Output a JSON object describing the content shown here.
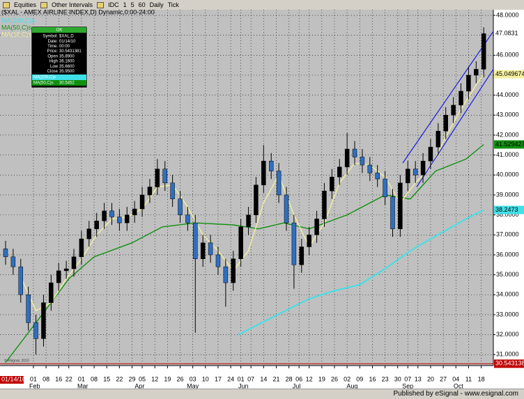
{
  "toolbar": {
    "items": [
      "Equities",
      "Other Intervals",
      "IDC",
      "1",
      "5",
      "60",
      "Daily",
      "Tick"
    ]
  },
  "chart_data": {
    "type": "candlestick",
    "title": "($XAL - AMEX AIRLINE INDEX,D) Dynamic,0:00-24:00",
    "copyright": "© eSignal, 2010",
    "start_label": "01/14/10",
    "up_color": "#000000",
    "down_color": "#2f6fbf",
    "x": [
      0,
      3,
      6,
      9,
      12,
      15,
      18,
      21,
      24,
      27,
      30,
      33,
      36,
      39,
      42,
      45,
      48,
      51,
      54,
      57,
      60,
      63,
      66,
      69,
      72,
      75,
      78,
      81,
      84,
      87,
      90,
      93,
      96,
      99,
      102,
      105,
      108,
      111,
      114,
      117,
      120,
      123,
      126,
      129,
      132,
      135,
      138,
      141,
      144,
      147,
      150,
      153,
      156,
      159,
      162,
      165,
      168,
      171,
      174,
      177,
      180,
      183,
      186,
      189
    ],
    "open": [
      36.3,
      35.9,
      35.4,
      34.0,
      32.6,
      31.8,
      33.6,
      34.6,
      35.2,
      35.3,
      35.9,
      36.8,
      37.3,
      37.7,
      38.2,
      37.9,
      37.6,
      38.0,
      38.3,
      39.0,
      39.4,
      40.3,
      39.6,
      38.8,
      38.0,
      37.6,
      35.8,
      36.6,
      36.0,
      35.4,
      34.6,
      35.8,
      37.4,
      38.0,
      39.5,
      40.7,
      40.2,
      39.0,
      37.6,
      35.5,
      36.4,
      37.0,
      37.8,
      39.2,
      39.9,
      40.4,
      41.3,
      40.9,
      40.5,
      40.1,
      39.8,
      38.9,
      37.3,
      39.6,
      40.3,
      40.0,
      40.7,
      41.4,
      42.2,
      43.0,
      43.5,
      44.2,
      45.0,
      45.3
    ],
    "high": [
      36.7,
      36.3,
      35.8,
      34.4,
      33.0,
      34.0,
      35.0,
      35.6,
      35.7,
      36.3,
      37.2,
      37.7,
      38.1,
      38.6,
      38.6,
      38.3,
      38.4,
      38.7,
      39.4,
      39.8,
      40.8,
      40.7,
      40.0,
      39.2,
      38.4,
      38.0,
      37.0,
      37.0,
      36.4,
      35.8,
      36.2,
      37.8,
      38.4,
      39.9,
      41.5,
      41.1,
      40.6,
      39.4,
      38.0,
      36.8,
      37.4,
      38.2,
      39.6,
      40.3,
      40.8,
      42.1,
      41.7,
      41.3,
      40.9,
      40.5,
      40.2,
      39.3,
      40.0,
      40.7,
      40.7,
      41.1,
      41.8,
      42.6,
      43.4,
      43.9,
      44.6,
      45.4,
      45.7,
      47.4
    ],
    "low": [
      35.5,
      35.0,
      33.6,
      32.2,
      31.0,
      31.4,
      33.2,
      34.2,
      34.8,
      34.9,
      35.5,
      36.4,
      36.9,
      37.3,
      37.5,
      37.2,
      37.2,
      37.6,
      37.9,
      38.6,
      39.0,
      39.2,
      38.4,
      37.6,
      37.2,
      32.1,
      35.4,
      35.6,
      35.0,
      33.4,
      34.2,
      35.4,
      37.0,
      37.6,
      39.1,
      39.8,
      38.6,
      37.2,
      34.3,
      35.1,
      36.0,
      36.6,
      37.4,
      38.8,
      39.5,
      40.0,
      40.5,
      40.1,
      39.7,
      39.4,
      38.5,
      36.9,
      36.9,
      39.2,
      39.6,
      39.6,
      40.3,
      41.0,
      41.8,
      42.6,
      43.1,
      43.8,
      44.6,
      44.9
    ],
    "close": [
      35.9,
      35.4,
      34.0,
      32.6,
      31.8,
      33.6,
      34.6,
      35.2,
      35.3,
      35.9,
      36.8,
      37.3,
      37.7,
      38.2,
      37.9,
      37.6,
      38.0,
      38.3,
      39.0,
      39.4,
      40.3,
      39.6,
      38.8,
      38.0,
      37.6,
      35.8,
      36.6,
      36.0,
      35.4,
      34.6,
      35.8,
      37.4,
      38.0,
      39.5,
      40.7,
      40.2,
      39.0,
      37.6,
      35.5,
      36.4,
      37.0,
      37.8,
      39.2,
      39.9,
      40.4,
      41.3,
      40.9,
      40.5,
      40.1,
      39.8,
      38.9,
      37.3,
      39.6,
      40.3,
      40.0,
      40.7,
      41.4,
      42.2,
      43.0,
      43.5,
      44.2,
      45.0,
      45.3,
      47.0831
    ],
    "lines": [
      {
        "name": "MA(200,C)s",
        "color": "#40e0e8",
        "x": [
          92,
          106,
          120,
          130,
          140,
          150,
          160,
          168,
          175,
          182,
          189
        ],
        "values": [
          32.0,
          32.9,
          33.8,
          34.2,
          34.5,
          35.3,
          36.2,
          36.8,
          37.3,
          37.8,
          38.2473
        ]
      },
      {
        "name": "MA(50,C)s",
        "color": "#109010",
        "x": [
          0,
          6,
          12,
          18,
          25,
          35,
          50,
          62,
          75,
          90,
          100,
          110,
          120,
          135,
          150,
          160,
          170,
          182,
          189
        ],
        "values": [
          30.6,
          31.6,
          32.6,
          33.6,
          34.8,
          35.9,
          36.6,
          37.4,
          37.6,
          37.5,
          37.3,
          37.6,
          37.3,
          38.0,
          39.0,
          38.8,
          40.2,
          40.8,
          41.529427
        ]
      },
      {
        "name": "MA(10,C)s",
        "color": "#f5efa0",
        "x": [
          6,
          12,
          18,
          24,
          30,
          36,
          42,
          48,
          54,
          60,
          66,
          72,
          78,
          84,
          90,
          96,
          102,
          108,
          114,
          120,
          126,
          132,
          138,
          144,
          150,
          156,
          162,
          168,
          174,
          180,
          186,
          189
        ],
        "values": [
          34.9,
          33.2,
          33.6,
          34.8,
          35.8,
          37.0,
          37.8,
          37.9,
          38.3,
          39.4,
          39.5,
          38.4,
          37.0,
          36.2,
          35.2,
          36.2,
          38.6,
          40.0,
          38.0,
          36.4,
          37.6,
          39.6,
          40.6,
          40.5,
          39.9,
          38.6,
          39.6,
          40.4,
          41.9,
          43.3,
          44.5,
          45.049674
        ]
      }
    ],
    "channel": {
      "color": "#1a1ae0",
      "lines": [
        {
          "x": [
            157,
            192.8
          ],
          "values": [
            40.6,
            47.2
          ]
        },
        {
          "x": [
            162.5,
            192.8
          ],
          "values": [
            39.4,
            45.3
          ]
        }
      ]
    },
    "ref_line": {
      "value": 30.543138,
      "color": "#c00000"
    },
    "xlim": [
      -2.2,
      192.8
    ],
    "ylim": [
      30.45,
      48.28
    ],
    "yticks": [
      {
        "value": 31,
        "label": "31.0000"
      },
      {
        "value": 32,
        "label": "32.0000"
      },
      {
        "value": 33,
        "label": "33.0000"
      },
      {
        "value": 34,
        "label": "34.0000"
      },
      {
        "value": 35,
        "label": "35.0000"
      },
      {
        "value": 36,
        "label": "36.0000"
      },
      {
        "value": 37,
        "label": "37.0000"
      },
      {
        "value": 38,
        "label": "38.0000"
      },
      {
        "value": 39,
        "label": "39.0000"
      },
      {
        "value": 40,
        "label": "40.0000"
      },
      {
        "value": 41,
        "label": "41.0000"
      },
      {
        "value": 42,
        "label": "42.0000"
      },
      {
        "value": 43,
        "label": "43.0000"
      },
      {
        "value": 44,
        "label": "44.0000"
      },
      {
        "value": 45,
        "label": "45.0000"
      },
      {
        "value": 46,
        "label": "46.0000"
      },
      {
        "value": 47,
        "label": "47.0000"
      },
      {
        "value": 48,
        "label": "48.0000"
      }
    ],
    "xticks": [
      {
        "value": 11,
        "label": "01"
      },
      {
        "value": 16,
        "label": "08"
      },
      {
        "value": 21,
        "label": "16"
      },
      {
        "value": 25,
        "label": "22"
      },
      {
        "value": 30,
        "label": "01"
      },
      {
        "value": 35,
        "label": "08"
      },
      {
        "value": 40,
        "label": "15"
      },
      {
        "value": 45,
        "label": "22"
      },
      {
        "value": 50,
        "label": "29"
      },
      {
        "value": 54,
        "label": "05"
      },
      {
        "value": 59,
        "label": "12"
      },
      {
        "value": 64,
        "label": "19"
      },
      {
        "value": 69,
        "label": "26"
      },
      {
        "value": 74,
        "label": "03"
      },
      {
        "value": 79,
        "label": "10"
      },
      {
        "value": 84,
        "label": "17"
      },
      {
        "value": 89,
        "label": "24"
      },
      {
        "value": 93,
        "label": "01"
      },
      {
        "value": 97,
        "label": "07"
      },
      {
        "value": 102,
        "label": "14"
      },
      {
        "value": 107,
        "label": "21"
      },
      {
        "value": 112,
        "label": "28"
      },
      {
        "value": 116,
        "label": "06"
      },
      {
        "value": 120,
        "label": "12"
      },
      {
        "value": 125,
        "label": "19"
      },
      {
        "value": 130,
        "label": "26"
      },
      {
        "value": 135,
        "label": "02"
      },
      {
        "value": 140,
        "label": "09"
      },
      {
        "value": 145,
        "label": "16"
      },
      {
        "value": 150,
        "label": "23"
      },
      {
        "value": 155,
        "label": "30"
      },
      {
        "value": 159,
        "label": "07"
      },
      {
        "value": 163,
        "label": "13"
      },
      {
        "value": 168,
        "label": "20"
      },
      {
        "value": 173,
        "label": "27"
      },
      {
        "value": 178,
        "label": "04"
      },
      {
        "value": 183,
        "label": "11"
      },
      {
        "value": 188,
        "label": "18"
      }
    ],
    "month_ticks": [
      {
        "value": 11.5,
        "label": "Feb"
      },
      {
        "value": 30.5,
        "label": "Mar"
      },
      {
        "value": 53,
        "label": "Apr"
      },
      {
        "value": 74,
        "label": "May"
      },
      {
        "value": 94,
        "label": "Jun"
      },
      {
        "value": 115,
        "label": "Jul"
      },
      {
        "value": 137,
        "label": "Aug"
      },
      {
        "value": 159,
        "label": "Sep"
      },
      {
        "value": 179,
        "label": "Oct"
      }
    ],
    "grid": true
  },
  "info_box": {
    "header": "OK",
    "rows": [
      [
        "Symbol:",
        "$XAL,D"
      ],
      [
        "Date:",
        "01/14/10"
      ],
      [
        "Time:",
        "00:00"
      ],
      [
        "Price:",
        "30.5431381"
      ],
      [
        "Open",
        "35.8900"
      ],
      [
        "High",
        "36.1600"
      ],
      [
        "Low",
        "35.6600"
      ],
      [
        "Close",
        "35.9500"
      ]
    ],
    "ma_rows": [
      [
        "MA(200,C)s",
        ""
      ],
      [
        "MA(50,C)s",
        "30.5452"
      ]
    ]
  },
  "status_bar": "Published by eSignal - www.esignal.com"
}
